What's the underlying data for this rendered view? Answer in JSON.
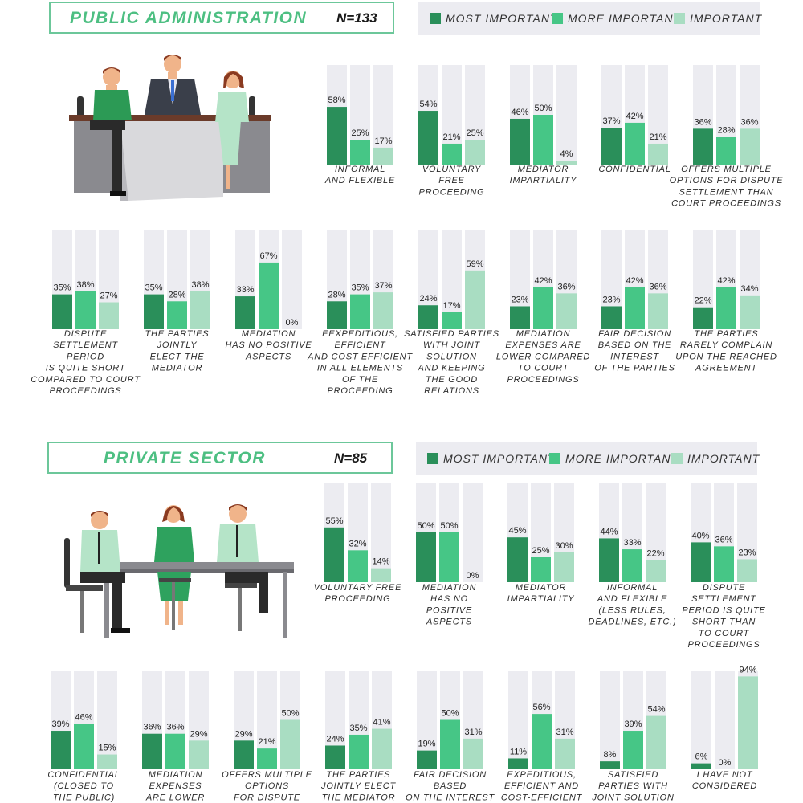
{
  "colors": {
    "most": "#2a8f5a",
    "more": "#46c686",
    "important": "#a9ddc2",
    "track": "#ececf1",
    "accent": "#4dbf82"
  },
  "legend": {
    "most": "MOST IMPORTANT",
    "more": "MORE IMPORTANT",
    "important": "IMPORTANT"
  },
  "sections": [
    {
      "title": "PUBLIC ADMINISTRATION",
      "n_label": "N=133",
      "illustration": "office-meeting-illustration"
    },
    {
      "title": "PRIVATE SECTOR",
      "n_label": "N=85",
      "illustration": "office-meeting-illustration"
    }
  ],
  "chart_data": [
    {
      "type": "bar",
      "title": "PUBLIC ADMINISTRATION",
      "ylim": [
        0,
        100
      ],
      "series_names": [
        "MOST IMPORTANT",
        "MORE IMPORTANT",
        "IMPORTANT"
      ],
      "groups": [
        {
          "label": [
            "INFORMAL",
            "AND FLEXIBLE"
          ],
          "values": [
            58,
            25,
            17
          ]
        },
        {
          "label": [
            "VOLUNTARY",
            "FREE",
            "PROCEEDING"
          ],
          "values": [
            54,
            21,
            25
          ]
        },
        {
          "label": [
            "MEDIATOR",
            "IMPARTIALITY"
          ],
          "values": [
            46,
            50,
            4
          ]
        },
        {
          "label": [
            "CONFIDENTIAL"
          ],
          "values": [
            37,
            42,
            21
          ]
        },
        {
          "label": [
            "OFFERS MULTIPLE",
            "OPTIONS FOR DISPUTE",
            "SETTLEMENT THAN",
            "COURT PROCEEDINGS"
          ],
          "values": [
            36,
            28,
            36
          ]
        },
        {
          "label": [
            "DISPUTE",
            "SETTLEMENT",
            "PERIOD",
            "IS QUITE SHORT",
            "COMPARED TO COURT",
            "PROCEEDINGS"
          ],
          "values": [
            35,
            38,
            27
          ]
        },
        {
          "label": [
            "THE PARTIES",
            "JOINTLY",
            "ELECT THE",
            "MEDIATOR"
          ],
          "values": [
            35,
            28,
            38
          ]
        },
        {
          "label": [
            "MEDIATION",
            "HAS NO POSITIVE",
            "ASPECTS"
          ],
          "values": [
            33,
            67,
            0
          ]
        },
        {
          "label": [
            "EEXPEDITIOUS,",
            "EFFICIENT",
            "AND COST-EFFICIENT",
            "IN ALL ELEMENTS",
            "OF THE",
            "PROCEEDING"
          ],
          "values": [
            28,
            35,
            37
          ]
        },
        {
          "label": [
            "SATISFIED PARTIES",
            "WITH JOINT",
            "SOLUTION",
            "AND KEEPING",
            "THE GOOD",
            "RELATIONS"
          ],
          "values": [
            24,
            17,
            59
          ]
        },
        {
          "label": [
            "MEDIATION",
            "EXPENSES ARE",
            "LOWER COMPARED",
            "TO COURT",
            "PROCEEDINGS"
          ],
          "values": [
            23,
            42,
            36
          ]
        },
        {
          "label": [
            "FAIR DECISION",
            "BASED ON THE",
            "INTEREST",
            "OF THE PARTIES"
          ],
          "values": [
            23,
            42,
            36
          ]
        },
        {
          "label": [
            "THE PARTIES",
            "RARELY COMPLAIN",
            "UPON THE REACHED",
            "AGREEMENT"
          ],
          "values": [
            22,
            42,
            34
          ]
        }
      ]
    },
    {
      "type": "bar",
      "title": "PRIVATE SECTOR",
      "ylim": [
        0,
        100
      ],
      "series_names": [
        "MOST IMPORTANT",
        "MORE IMPORTANT",
        "IMPORTANT"
      ],
      "groups": [
        {
          "label": [
            "VOLUNTARY FREE",
            "PROCEEDING"
          ],
          "values": [
            55,
            32,
            14
          ]
        },
        {
          "label": [
            "MEDIATION",
            "HAS NO",
            "POSITIVE",
            "ASPECTS"
          ],
          "values": [
            50,
            50,
            0
          ]
        },
        {
          "label": [
            "MEDIATOR",
            "IMPARTIALITY"
          ],
          "values": [
            45,
            25,
            30
          ]
        },
        {
          "label": [
            "INFORMAL",
            "AND FLEXIBLE",
            "(LESS RULES,",
            "DEADLINES, ETC.)"
          ],
          "values": [
            44,
            33,
            22
          ]
        },
        {
          "label": [
            "DISPUTE",
            "SETTLEMENT",
            "PERIOD IS QUITE",
            "SHORT THAN",
            "TO COURT",
            "PROCEEDINGS"
          ],
          "values": [
            40,
            36,
            23
          ]
        },
        {
          "label": [
            "CONFIDENTIAL",
            "(CLOSED TO",
            "THE PUBLIC)"
          ],
          "values": [
            39,
            46,
            15
          ]
        },
        {
          "label": [
            "MEDIATION",
            "EXPENSES",
            "ARE LOWER"
          ],
          "values": [
            36,
            36,
            29
          ]
        },
        {
          "label": [
            "OFFERS MULTIPLE",
            "OPTIONS",
            "FOR DISPUTE"
          ],
          "values": [
            29,
            21,
            50
          ]
        },
        {
          "label": [
            "THE PARTIES",
            "JOINTLY ELECT",
            "THE MEDIATOR"
          ],
          "values": [
            24,
            35,
            41
          ]
        },
        {
          "label": [
            "FAIR DECISION",
            "BASED",
            "ON THE INTEREST"
          ],
          "values": [
            19,
            50,
            31
          ]
        },
        {
          "label": [
            "EXPEDITIOUS,",
            "EFFICIENT AND",
            "COST-EFFICIENT"
          ],
          "values": [
            11,
            56,
            31
          ]
        },
        {
          "label": [
            "SATISFIED",
            "PARTIES WITH",
            "JOINT SOLUTION"
          ],
          "values": [
            8,
            39,
            54
          ]
        },
        {
          "label": [
            "I HAVE NOT",
            "CONSIDERED"
          ],
          "values": [
            6,
            0,
            94
          ]
        }
      ]
    }
  ]
}
